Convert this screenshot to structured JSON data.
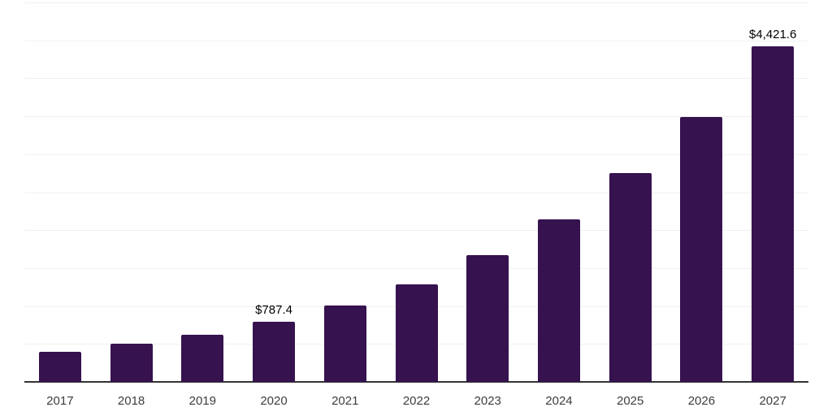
{
  "chart_data": {
    "type": "bar",
    "title": "",
    "xlabel": "",
    "ylabel": "",
    "categories": [
      "2017",
      "2018",
      "2019",
      "2020",
      "2021",
      "2022",
      "2023",
      "2024",
      "2025",
      "2026",
      "2027"
    ],
    "values": [
      395,
      505,
      620,
      787.4,
      1005,
      1285,
      1665,
      2145,
      2750,
      3495,
      4421.6
    ],
    "point_labels": [
      "",
      "",
      "",
      "$787.4",
      "",
      "",
      "",
      "",
      "",
      "",
      "$4,421.6"
    ],
    "ylim": [
      0,
      5000
    ],
    "grid_step": 500,
    "grid": "on",
    "legend": "none",
    "y_axis_labels": "none",
    "colors": {
      "bar": "#36124f",
      "grid_line": "#f0f0f0",
      "axis_line": "#333333",
      "tick_label": "#3d3d3d",
      "data_label": "#000000",
      "background": "#ffffff"
    }
  }
}
